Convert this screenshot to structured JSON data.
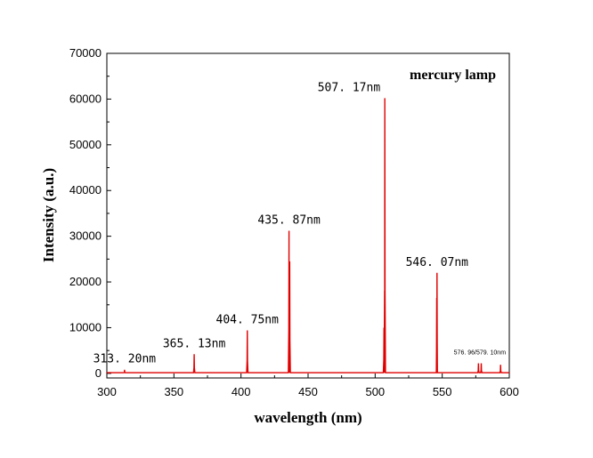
{
  "chart_data": {
    "type": "line",
    "title": "",
    "legend_text": "mercury lamp",
    "legend_position": "top-right",
    "xlabel": "wavelength (nm)",
    "ylabel": "Intensity (a.u.)",
    "xlim": [
      300,
      600
    ],
    "ylim": [
      -1000,
      70000
    ],
    "x_ticks": [
      300,
      350,
      400,
      450,
      500,
      550,
      600
    ],
    "y_ticks": [
      0,
      10000,
      20000,
      30000,
      40000,
      50000,
      60000,
      70000
    ],
    "grid": false,
    "series_color": "#e00000",
    "peaks": [
      {
        "x": 313.2,
        "y": 800
      },
      {
        "x": 365.1,
        "y": 4200
      },
      {
        "x": 404.7,
        "y": 9400
      },
      {
        "x": 435.8,
        "y": 31200
      },
      {
        "x": 436.3,
        "y": 24500
      },
      {
        "x": 506.6,
        "y": 10000
      },
      {
        "x": 507.2,
        "y": 60200
      },
      {
        "x": 545.9,
        "y": 16500
      },
      {
        "x": 546.1,
        "y": 22000
      },
      {
        "x": 577.0,
        "y": 2200
      },
      {
        "x": 579.1,
        "y": 2200
      },
      {
        "x": 593.5,
        "y": 1900
      }
    ],
    "annotations": [
      {
        "text": "313. 20nm",
        "x": 313.2
      },
      {
        "text": "365. 13nm",
        "x": 365.1
      },
      {
        "text": "404. 75nm",
        "x": 404.7
      },
      {
        "text": "435. 87nm",
        "x": 435.8
      },
      {
        "text": "507. 17nm",
        "x": 507.2
      },
      {
        "text": "546. 07nm",
        "x": 546.1
      },
      {
        "text": "576. 96/579. 10nm",
        "x": 578.0
      }
    ]
  }
}
